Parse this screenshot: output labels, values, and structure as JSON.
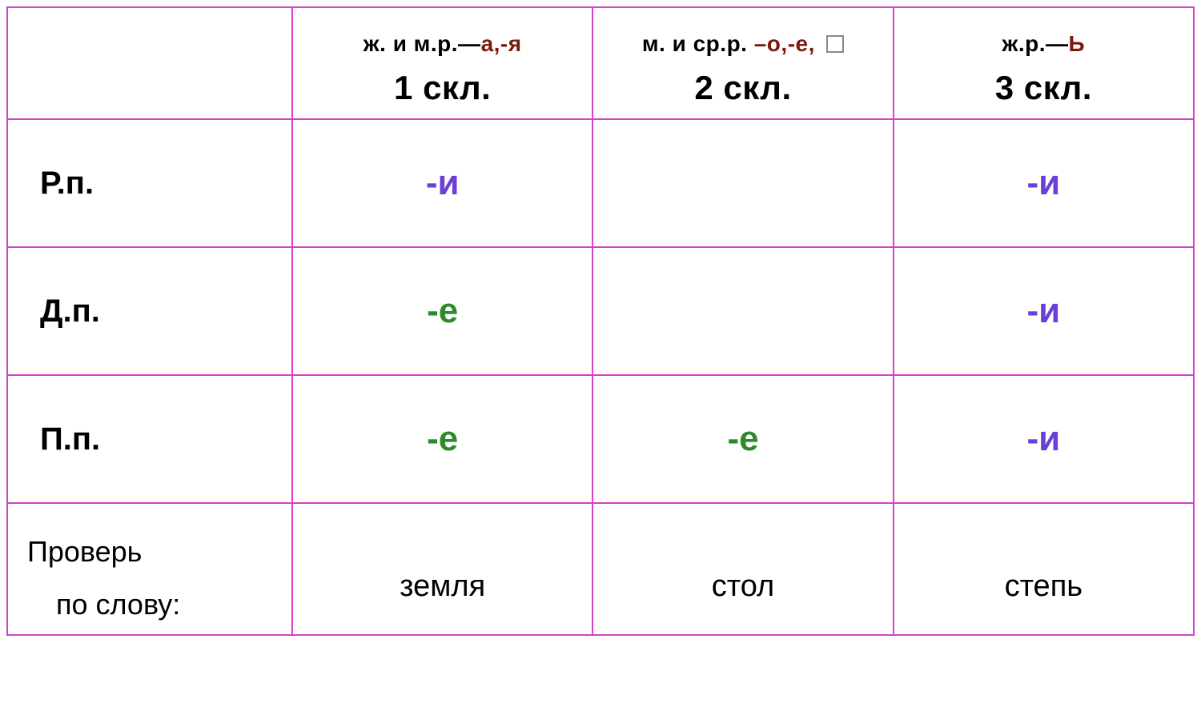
{
  "colors": {
    "border": "#d63fc9",
    "accent_text": "#7a1a0d",
    "ending_green": "#2c8a2c",
    "ending_purple": "#6b3fd3",
    "text_black": "#000000",
    "background": "#ffffff",
    "box_border": "#888888"
  },
  "fonts": {
    "family": "Verdana",
    "header_top_size": 28,
    "header_main_size": 42,
    "case_label_size": 40,
    "ending_size": 44,
    "check_size": 36,
    "word_size": 38,
    "header_top_weight": 700,
    "bold_weight": 900
  },
  "headers": {
    "col1": {
      "top_prefix": "ж. и м.р.—",
      "top_accent": "а,-я",
      "main": "1 скл."
    },
    "col2": {
      "top_prefix": "м. и ср.р. ",
      "top_accent": "–о,-е,",
      "has_box": true,
      "main": "2 скл."
    },
    "col3": {
      "top_prefix": "ж.р.—",
      "top_accent": "Ь",
      "main": "3 скл."
    }
  },
  "rows": {
    "cases": [
      {
        "label": "Р.п.",
        "endings": [
          {
            "text": "-и",
            "color": "purple"
          },
          {
            "text": "",
            "color": ""
          },
          {
            "text": "-и",
            "color": "purple"
          }
        ]
      },
      {
        "label": "Д.п.",
        "endings": [
          {
            "text": "-е",
            "color": "green"
          },
          {
            "text": "",
            "color": ""
          },
          {
            "text": "-и",
            "color": "purple"
          }
        ]
      },
      {
        "label": "П.п.",
        "endings": [
          {
            "text": "-е",
            "color": "green"
          },
          {
            "text": "-е",
            "color": "green"
          },
          {
            "text": "-и",
            "color": "purple"
          }
        ]
      }
    ],
    "check": {
      "line1": "Проверь",
      "line2": "по слову:",
      "words": [
        "земля",
        "стол",
        "степь"
      ]
    }
  }
}
